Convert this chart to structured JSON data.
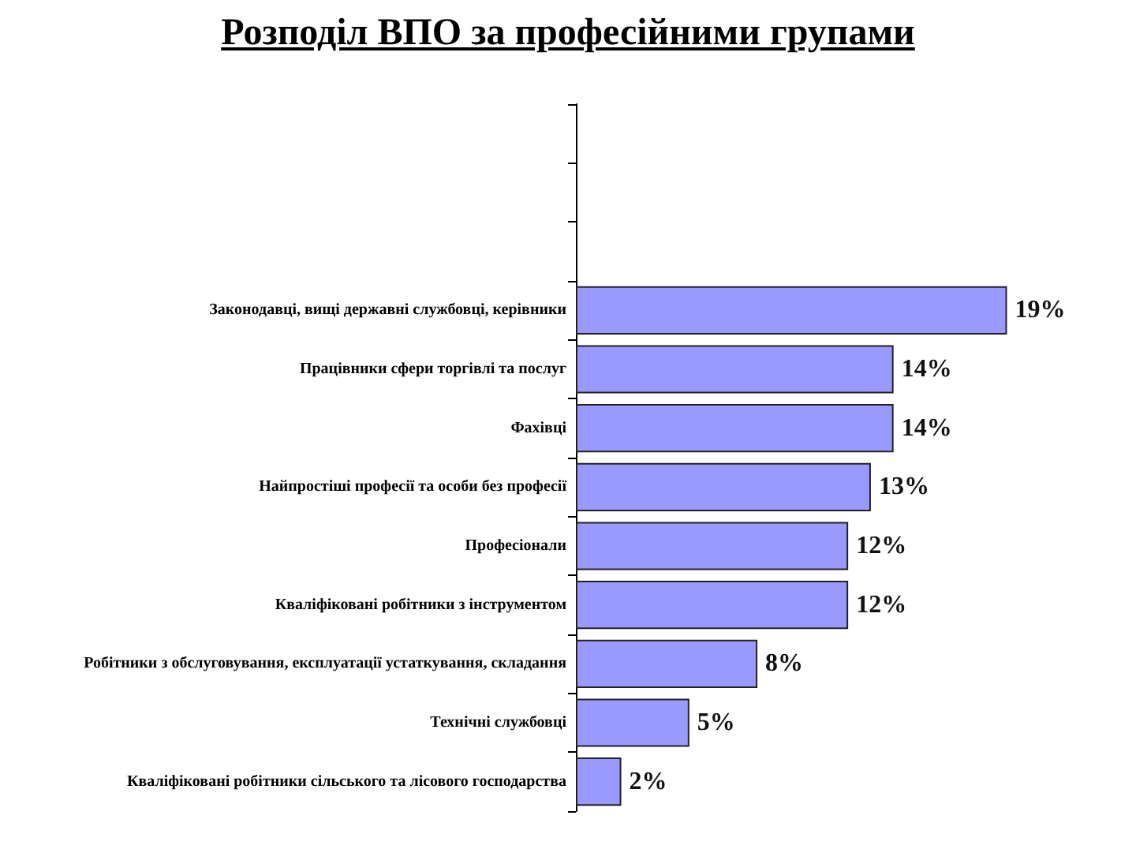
{
  "chart_data": {
    "type": "bar",
    "orientation": "horizontal",
    "title": "Розподіл ВПО за професійними групами",
    "categories": [
      null,
      null,
      null,
      "Законодавці, вищі державні службовці, керівники",
      "Працівники сфери торгівлі та послуг",
      "Фахівці",
      "Найпростіші професії та особи без професії",
      "Професіонали",
      "Кваліфіковані робітники з інструментом",
      "Робітники з обслуговування, експлуатації устаткування, складання",
      "Технічні службовці",
      "Кваліфіковані робітники сільського та лісового господарства"
    ],
    "values": [
      null,
      null,
      null,
      19,
      14,
      14,
      13,
      12,
      12,
      8,
      5,
      2
    ],
    "value_labels": [
      null,
      null,
      null,
      "19%",
      "14%",
      "14%",
      "13%",
      "12%",
      "12%",
      "8%",
      "5%",
      "2%"
    ],
    "color": "#9999ff"
  }
}
